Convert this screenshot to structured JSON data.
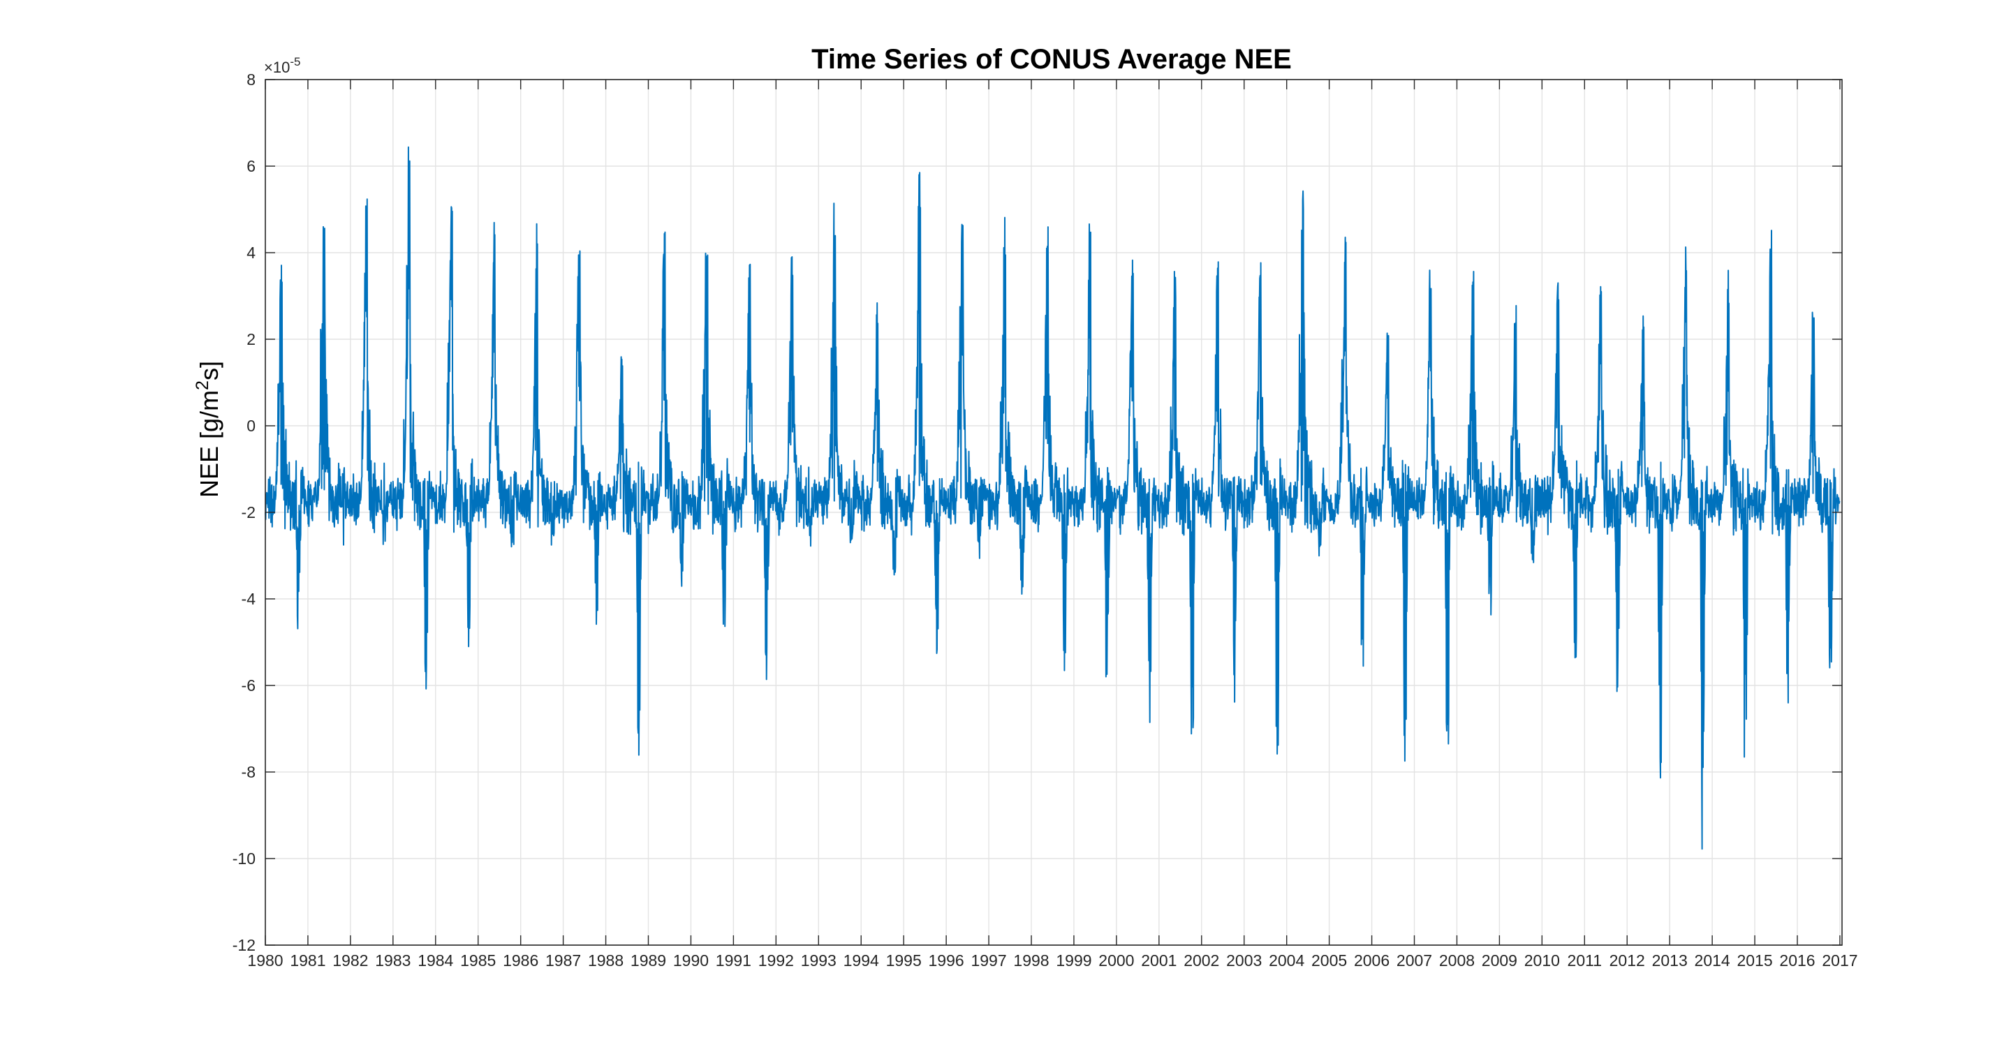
{
  "chart_data": {
    "type": "line",
    "title": "Time Series of CONUS Average NEE",
    "ylabel_main": "NEE [g/m",
    "ylabel_sup": "2",
    "ylabel_tail": "s]",
    "y_exponent_base": "×10",
    "y_exponent_power": "-5",
    "xlim": [
      1980,
      2017.05
    ],
    "ylim": [
      -12,
      8
    ],
    "yticks": [
      8,
      6,
      4,
      2,
      0,
      -2,
      -4,
      -6,
      -8,
      -10,
      -12
    ],
    "ytick_labels": [
      "8",
      "6",
      "4",
      "2",
      "0",
      "-2",
      "-4",
      "-6",
      "-8",
      "-10",
      "-12"
    ],
    "xticks": [
      1980,
      1981,
      1982,
      1983,
      1984,
      1985,
      1986,
      1987,
      1988,
      1989,
      1990,
      1991,
      1992,
      1993,
      1994,
      1995,
      1996,
      1997,
      1998,
      1999,
      2000,
      2001,
      2002,
      2003,
      2004,
      2005,
      2006,
      2007,
      2008,
      2009,
      2010,
      2011,
      2012,
      2013,
      2014,
      2015,
      2016,
      2017
    ],
    "xtick_labels": [
      "1980",
      "1981",
      "1982",
      "1983",
      "1984",
      "1985",
      "1986",
      "1987",
      "1988",
      "1989",
      "1990",
      "1991",
      "1992",
      "1993",
      "1994",
      "1995",
      "1996",
      "1997",
      "1998",
      "1999",
      "2000",
      "2001",
      "2002",
      "2003",
      "2004",
      "2005",
      "2006",
      "2007",
      "2008",
      "2009",
      "2010",
      "2011",
      "2012",
      "2013",
      "2014",
      "2015",
      "2016",
      "2017"
    ],
    "grid": true,
    "line_color": "#0072BD",
    "series": [
      {
        "annual_peak_max": [
          4.1,
          5.5,
          5.9,
          6.6,
          5.2,
          4.7,
          4.7,
          4.4,
          1.6,
          4.8,
          4.7,
          4.3,
          4.2,
          5.4,
          3.0,
          6.3,
          4.7,
          5.2,
          4.7,
          5.3,
          4.0,
          3.7,
          3.8,
          3.8,
          5.5,
          4.9,
          2.3,
          3.6,
          3.8,
          2.9,
          3.8,
          3.8,
          2.9,
          4.2,
          3.6,
          4.7,
          3.1
        ],
        "annual_trough_min": [
          -5.2,
          -1.9,
          -2.2,
          -6.6,
          -5.5,
          -2.9,
          -2.6,
          -5.2,
          -8.5,
          -4.0,
          -5.3,
          -6.7,
          -2.4,
          -3.2,
          -3.8,
          -5.7,
          -3.1,
          -4.5,
          -6.4,
          -7.0,
          -7.2,
          -9.1,
          -7.3,
          -8.5,
          -3.2,
          -6.4,
          -8.8,
          -8.4,
          -5.0,
          -3.4,
          -6.1,
          -7.3,
          -8.8,
          -11.8,
          -9.4,
          -7.2,
          -7.0
        ],
        "baseline": -1.8
      }
    ]
  }
}
